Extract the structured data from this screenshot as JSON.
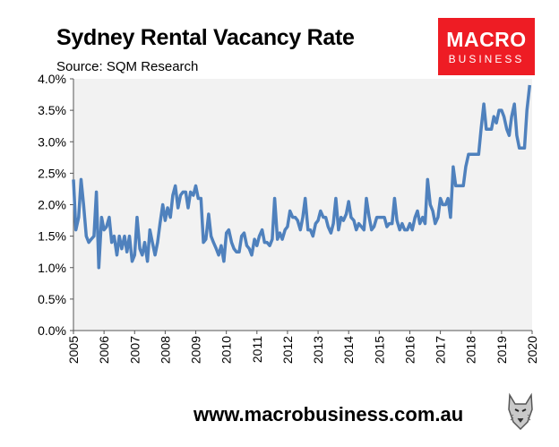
{
  "header": {
    "title": "Sydney Rental Vacancy Rate",
    "subtitle": "Source: SQM Research"
  },
  "logo": {
    "line1": "MACRO",
    "line2": "BUSINESS"
  },
  "footer": {
    "url": "www.macrobusiness.com.au"
  },
  "colors": {
    "line": "#4f81bd",
    "plot_bg": "#f2f2f2",
    "logo_bg": "#ee1c24"
  },
  "chart_data": {
    "type": "line",
    "title": "Sydney Rental Vacancy Rate",
    "subtitle": "Source: SQM Research",
    "xlabel": "",
    "ylabel": "",
    "ylim": [
      0,
      4
    ],
    "xlim": [
      2005,
      2020
    ],
    "y_ticks": [
      "0.0%",
      "0.5%",
      "1.0%",
      "1.5%",
      "2.0%",
      "2.5%",
      "3.0%",
      "3.5%",
      "4.0%"
    ],
    "x_ticks": [
      "2005",
      "2006",
      "2007",
      "2008",
      "2009",
      "2010",
      "2011",
      "2012",
      "2013",
      "2014",
      "2015",
      "2016",
      "2017",
      "2018",
      "2019",
      "2020"
    ],
    "grid": false,
    "legend": "none",
    "series": [
      {
        "x": [
          2005.0,
          2005.08,
          2005.17,
          2005.25,
          2005.33,
          2005.42,
          2005.5,
          2005.58,
          2005.67,
          2005.75,
          2005.83,
          2005.92,
          2006.0,
          2006.08,
          2006.17,
          2006.25,
          2006.33,
          2006.42,
          2006.5,
          2006.58,
          2006.67,
          2006.75,
          2006.83,
          2006.92,
          2007.0,
          2007.08,
          2007.17,
          2007.25,
          2007.33,
          2007.42,
          2007.5,
          2007.58,
          2007.67,
          2007.75,
          2007.83,
          2007.92,
          2008.0,
          2008.08,
          2008.17,
          2008.25,
          2008.33,
          2008.42,
          2008.5,
          2008.58,
          2008.67,
          2008.75,
          2008.83,
          2008.92,
          2009.0,
          2009.08,
          2009.17,
          2009.25,
          2009.33,
          2009.42,
          2009.5,
          2009.58,
          2009.67,
          2009.75,
          2009.83,
          2009.92,
          2010.0,
          2010.08,
          2010.17,
          2010.25,
          2010.33,
          2010.42,
          2010.5,
          2010.58,
          2010.67,
          2010.75,
          2010.83,
          2010.92,
          2011.0,
          2011.08,
          2011.17,
          2011.25,
          2011.33,
          2011.42,
          2011.5,
          2011.58,
          2011.67,
          2011.75,
          2011.83,
          2011.92,
          2012.0,
          2012.08,
          2012.17,
          2012.25,
          2012.33,
          2012.42,
          2012.5,
          2012.58,
          2012.67,
          2012.75,
          2012.83,
          2012.92,
          2013.0,
          2013.08,
          2013.17,
          2013.25,
          2013.33,
          2013.42,
          2013.5,
          2013.58,
          2013.67,
          2013.75,
          2013.83,
          2013.92,
          2014.0,
          2014.08,
          2014.17,
          2014.25,
          2014.33,
          2014.42,
          2014.5,
          2014.58,
          2014.67,
          2014.75,
          2014.83,
          2014.92,
          2015.0,
          2015.08,
          2015.17,
          2015.25,
          2015.33,
          2015.42,
          2015.5,
          2015.58,
          2015.67,
          2015.75,
          2015.83,
          2015.92,
          2016.0,
          2016.08,
          2016.17,
          2016.25,
          2016.33,
          2016.42,
          2016.5,
          2016.58,
          2016.67,
          2016.75,
          2016.83,
          2016.92,
          2017.0,
          2017.08,
          2017.17,
          2017.25,
          2017.33,
          2017.42,
          2017.5,
          2017.58,
          2017.67,
          2017.75,
          2017.83,
          2017.92,
          2018.0,
          2018.08,
          2018.17,
          2018.25,
          2018.33,
          2018.42,
          2018.5,
          2018.58,
          2018.67,
          2018.75,
          2018.83,
          2018.92,
          2019.0,
          2019.08,
          2019.17,
          2019.25,
          2019.33,
          2019.42,
          2019.5,
          2019.58,
          2019.67,
          2019.75,
          2019.83,
          2019.92
        ],
        "values": [
          2.4,
          1.6,
          1.8,
          2.4,
          2.0,
          1.5,
          1.4,
          1.45,
          1.5,
          2.2,
          1.0,
          1.8,
          1.6,
          1.65,
          1.8,
          1.4,
          1.5,
          1.2,
          1.5,
          1.3,
          1.5,
          1.25,
          1.5,
          1.1,
          1.2,
          1.8,
          1.3,
          1.2,
          1.4,
          1.1,
          1.6,
          1.4,
          1.2,
          1.4,
          1.7,
          2.0,
          1.75,
          1.95,
          1.8,
          2.15,
          2.3,
          1.95,
          2.15,
          2.2,
          2.2,
          1.95,
          2.2,
          2.15,
          2.3,
          2.1,
          2.1,
          1.4,
          1.45,
          1.85,
          1.5,
          1.4,
          1.3,
          1.2,
          1.35,
          1.1,
          1.55,
          1.6,
          1.4,
          1.3,
          1.25,
          1.25,
          1.5,
          1.55,
          1.35,
          1.3,
          1.2,
          1.45,
          1.35,
          1.5,
          1.6,
          1.4,
          1.4,
          1.35,
          1.45,
          2.1,
          1.45,
          1.55,
          1.45,
          1.6,
          1.65,
          1.9,
          1.8,
          1.8,
          1.75,
          1.6,
          1.8,
          2.1,
          1.6,
          1.6,
          1.5,
          1.7,
          1.75,
          1.9,
          1.8,
          1.8,
          1.65,
          1.55,
          1.7,
          2.1,
          1.6,
          1.8,
          1.75,
          1.85,
          2.05,
          1.8,
          1.75,
          1.6,
          1.7,
          1.65,
          1.6,
          2.1,
          1.8,
          1.6,
          1.65,
          1.8,
          1.8,
          1.8,
          1.8,
          1.65,
          1.7,
          1.7,
          2.1,
          1.75,
          1.6,
          1.7,
          1.6,
          1.6,
          1.7,
          1.6,
          1.8,
          1.9,
          1.7,
          1.8,
          1.7,
          2.4,
          2.0,
          1.9,
          1.7,
          1.8,
          2.1,
          2.0,
          2.0,
          2.1,
          1.8,
          2.6,
          2.3,
          2.3,
          2.3,
          2.3,
          2.6,
          2.8,
          2.8,
          2.8,
          2.8,
          2.8,
          3.2,
          3.6,
          3.2,
          3.2,
          3.2,
          3.4,
          3.3,
          3.5,
          3.5,
          3.4,
          3.2,
          3.1,
          3.4,
          3.6,
          3.1,
          2.9,
          2.9,
          2.9,
          3.5,
          3.9
        ]
      }
    ]
  }
}
